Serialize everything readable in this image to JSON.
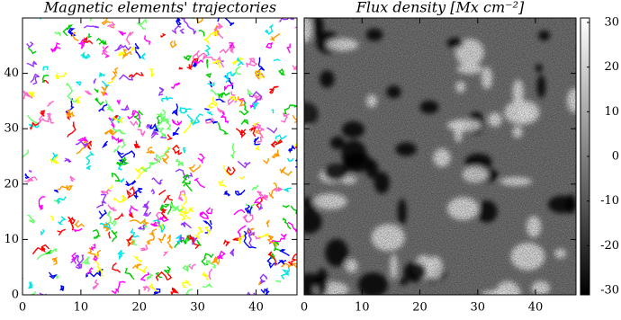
{
  "chart_data": [
    {
      "type": "trajectories",
      "title": "Magnetic elements' trajectories",
      "xlim": [
        0,
        47
      ],
      "ylim": [
        0,
        50
      ],
      "xticks": [
        0,
        10,
        20,
        30,
        40
      ],
      "yticks": [
        0,
        10,
        20,
        30,
        40
      ],
      "colors": [
        "#ff0000",
        "#0000ff",
        "#00cc00",
        "#ff00ff",
        "#ffff00",
        "#00e5e5",
        "#ff9900",
        "#9933ff",
        "#66ff66",
        "#ff66cc"
      ]
    },
    {
      "type": "image",
      "title": "Flux density [Mx cm⁻²]",
      "xlim": [
        0,
        47
      ],
      "ylim": [
        0,
        50
      ],
      "xticks": [
        0,
        10,
        20,
        30,
        40
      ],
      "yticks": [
        0,
        10,
        20,
        30,
        40
      ],
      "colorbar": {
        "ylim": [
          -31,
          31
        ],
        "yticks": [
          -30,
          -20,
          -10,
          0,
          10,
          20,
          30
        ],
        "colors": [
          "#000000",
          "#ffffff"
        ]
      }
    }
  ]
}
